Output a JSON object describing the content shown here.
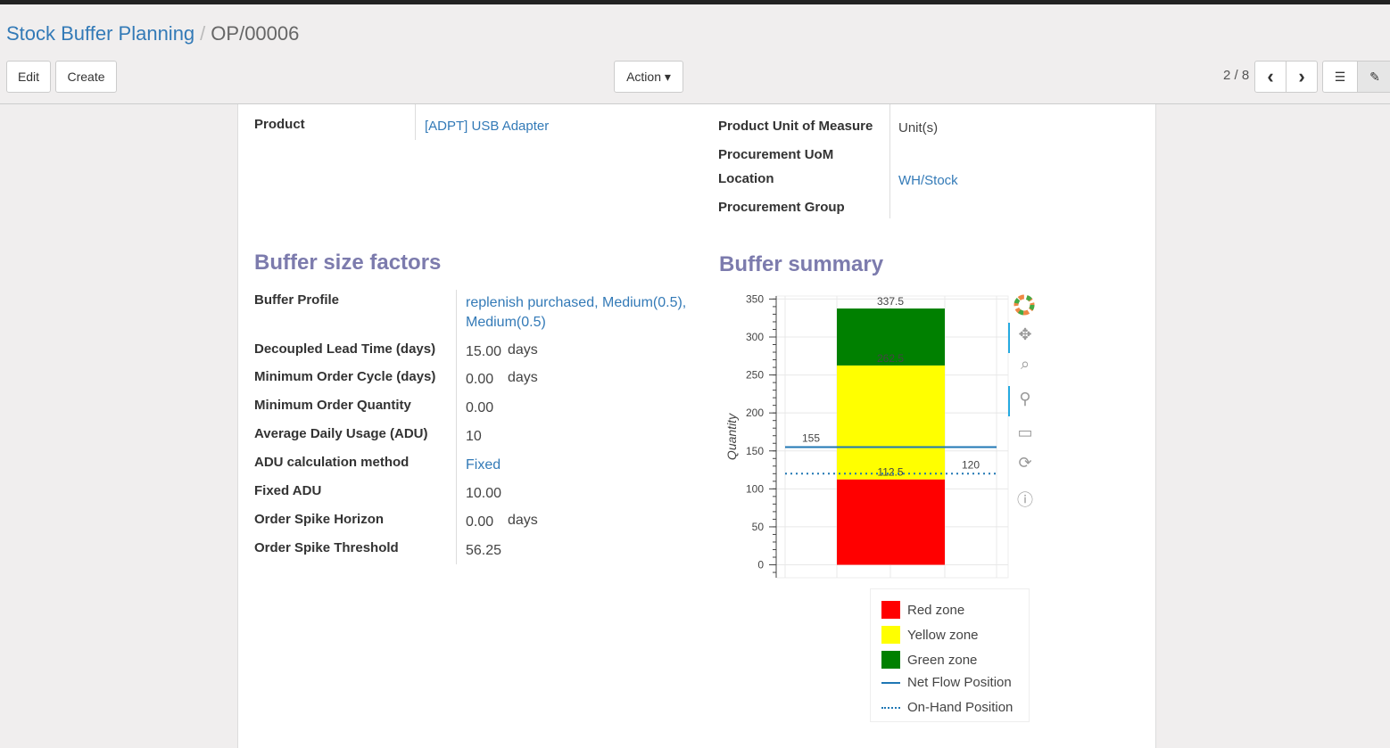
{
  "breadcrumb": {
    "parent": "Stock Buffer Planning",
    "separator": "/",
    "current": "OP/00006"
  },
  "toolbar": {
    "edit": "Edit",
    "create": "Create",
    "action": "Action ▾",
    "pager": "2 / 8",
    "prev": "‹",
    "next": "›"
  },
  "form": {
    "product_label": "Product",
    "product_value": "[ADPT] USB Adapter",
    "uom_label": "Product Unit of Measure",
    "uom_value": "Unit(s)",
    "proc_uom_label": "Procurement UoM",
    "location_label": "Location",
    "location_value": "WH/Stock",
    "proc_group_label": "Procurement Group"
  },
  "factors": {
    "title": "Buffer size factors",
    "rows": [
      {
        "label": "Buffer Profile",
        "value": "replenish purchased, Medium(0.5),",
        "value2": "Medium(0.5)"
      },
      {
        "label": "Decoupled Lead Time (days)",
        "value": "15.00",
        "unit": "days"
      },
      {
        "label": "Minimum Order Cycle (days)",
        "value": "0.00",
        "unit": "days"
      },
      {
        "label": "Minimum Order Quantity",
        "value": "0.00"
      },
      {
        "label": "Average Daily Usage (ADU)",
        "value": "10"
      },
      {
        "label": "ADU calculation method",
        "value": "Fixed"
      },
      {
        "label": "Fixed ADU",
        "value": "10.00"
      },
      {
        "label": "Order Spike Horizon",
        "value": "0.00",
        "unit": "days"
      },
      {
        "label": "Order Spike Threshold",
        "value": "56.25"
      }
    ]
  },
  "summary": {
    "title": "Buffer summary"
  },
  "chart_data": {
    "type": "bar",
    "stacked": true,
    "ylabel": "Quantity",
    "ylim": [
      -17,
      354
    ],
    "yticks": [
      0,
      50,
      100,
      150,
      200,
      250,
      300,
      350
    ],
    "grid": true,
    "zones": [
      {
        "name": "Red zone",
        "bottom": 0,
        "top": 112.5,
        "label": "112.5",
        "color": "#ff0000"
      },
      {
        "name": "Yellow zone",
        "bottom": 112.5,
        "top": 262.5,
        "label": "262.5",
        "color": "#ffff00"
      },
      {
        "name": "Green zone",
        "bottom": 262.5,
        "top": 337.5,
        "label": "337.5",
        "color": "#008000"
      }
    ],
    "lines": [
      {
        "name": "Net Flow Position",
        "value": 155,
        "label": "155",
        "style": "solid",
        "color": "#1f77b4"
      },
      {
        "name": "On-Hand Position",
        "value": 120,
        "label": "120",
        "style": "dotted",
        "color": "#1f77b4"
      }
    ],
    "legend_position": "bottom"
  }
}
